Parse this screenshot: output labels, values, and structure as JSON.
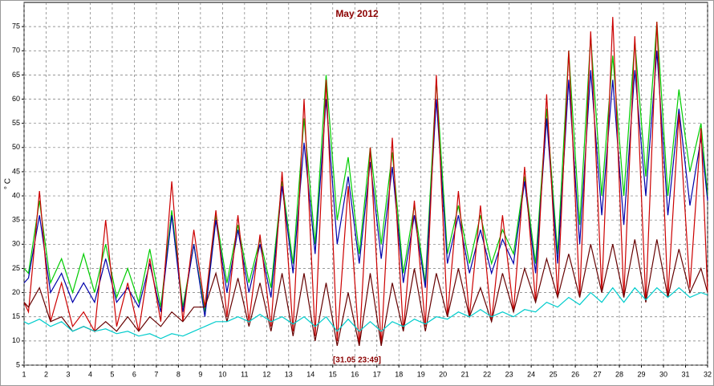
{
  "chart_data": {
    "type": "line",
    "title": "May 2012",
    "y_label": "° C",
    "annotation": "[31.05 23:49]",
    "xlim": [
      1,
      32
    ],
    "ylim": [
      5,
      80
    ],
    "xticks": [
      1,
      2,
      3,
      4,
      5,
      6,
      7,
      8,
      9,
      10,
      11,
      12,
      13,
      14,
      15,
      16,
      17,
      18,
      19,
      20,
      21,
      22,
      23,
      24,
      25,
      26,
      27,
      28,
      29,
      30,
      31,
      32
    ],
    "yticks": [
      5,
      10,
      15,
      20,
      25,
      30,
      35,
      40,
      45,
      50,
      55,
      60,
      65,
      70,
      75
    ],
    "grid": true,
    "x": [
      1,
      1.2,
      1.7,
      2.2,
      2.7,
      3.2,
      3.7,
      4.2,
      4.7,
      5.2,
      5.7,
      6.2,
      6.7,
      7.2,
      7.7,
      8.2,
      8.7,
      9.2,
      9.7,
      10.2,
      10.7,
      11.2,
      11.7,
      12.2,
      12.7,
      13.2,
      13.7,
      14.2,
      14.7,
      15.2,
      15.7,
      16.2,
      16.7,
      17.2,
      17.7,
      18.2,
      18.7,
      19.2,
      19.7,
      20.2,
      20.7,
      21.2,
      21.7,
      22.2,
      22.7,
      23.2,
      23.7,
      24.2,
      24.7,
      25.2,
      25.7,
      26.2,
      26.7,
      27.2,
      27.7,
      28.2,
      28.7,
      29.2,
      29.7,
      30.2,
      30.7,
      31.2,
      31.7,
      32
    ],
    "series": [
      {
        "color": "#00cc00",
        "values": [
          25,
          24,
          39,
          22,
          27,
          20,
          28,
          20,
          30,
          19,
          25,
          18,
          29,
          17,
          37,
          17,
          30,
          16,
          36,
          22,
          34,
          22,
          31,
          21,
          43,
          26,
          56,
          30,
          65,
          35,
          48,
          28,
          50,
          30,
          49,
          24,
          38,
          22,
          64,
          28,
          38,
          26,
          36,
          26,
          33,
          28,
          44,
          26,
          58,
          28,
          70,
          34,
          73,
          40,
          69,
          40,
          72,
          44,
          76,
          40,
          62,
          45,
          55,
          40
        ]
      },
      {
        "color": "#0000aa",
        "values": [
          22,
          23,
          36,
          20,
          24,
          18,
          22,
          18,
          27,
          18,
          21,
          17,
          26,
          16,
          36,
          16,
          30,
          15,
          35,
          20,
          33,
          20,
          30,
          19,
          42,
          24,
          51,
          28,
          60,
          30,
          44,
          26,
          47,
          27,
          46,
          22,
          36,
          21,
          60,
          26,
          36,
          24,
          33,
          24,
          31,
          26,
          43,
          24,
          56,
          26,
          64,
          30,
          66,
          36,
          64,
          34,
          66,
          40,
          70,
          36,
          58,
          38,
          52,
          39
        ]
      },
      {
        "color": "#cc0000",
        "values": [
          18,
          16,
          41,
          14,
          22,
          13,
          16,
          12,
          35,
          13,
          22,
          12,
          27,
          14,
          43,
          14,
          33,
          17,
          37,
          15,
          36,
          14,
          32,
          13,
          45,
          12,
          60,
          11,
          64,
          10,
          42,
          9,
          50,
          9,
          52,
          12,
          39,
          13,
          65,
          15,
          41,
          15,
          38,
          14,
          36,
          16,
          46,
          18,
          61,
          19,
          70,
          19,
          74,
          20,
          77,
          19,
          73,
          18,
          76,
          19,
          57,
          21,
          54,
          20
        ]
      },
      {
        "color": "#660000",
        "values": [
          18,
          17,
          21,
          14,
          15,
          12,
          13,
          12,
          14,
          12,
          15,
          12,
          15,
          13,
          16,
          14,
          17,
          17,
          24,
          14,
          23,
          13,
          22,
          12,
          24,
          11,
          24,
          10,
          22,
          9,
          20,
          9,
          24,
          9,
          22,
          12,
          25,
          12,
          24,
          15,
          25,
          15,
          21,
          14,
          24,
          16,
          25,
          18,
          27,
          19,
          28,
          19,
          30,
          20,
          30,
          19,
          31,
          18,
          31,
          19,
          29,
          20,
          25,
          20
        ]
      },
      {
        "color": "#00cccc",
        "values": [
          14,
          13.5,
          14.5,
          13,
          14,
          12,
          13,
          12,
          12.5,
          11.5,
          12,
          11,
          11.5,
          10.5,
          11.5,
          11,
          12,
          13,
          14,
          14,
          15,
          14,
          15.5,
          14,
          15,
          13.5,
          15,
          13,
          15,
          12,
          14.5,
          12,
          14,
          12,
          14,
          13,
          14.5,
          13.5,
          15,
          14.5,
          16,
          15,
          16.5,
          15,
          16,
          15,
          16.5,
          16,
          18,
          17,
          19,
          17.5,
          20,
          18,
          21,
          18,
          21,
          18.5,
          21,
          19,
          21,
          19,
          20,
          19.5
        ]
      }
    ]
  }
}
